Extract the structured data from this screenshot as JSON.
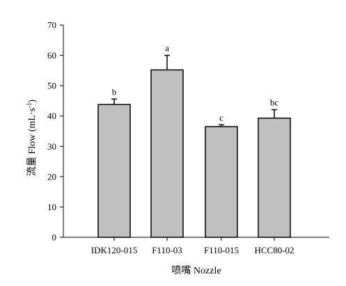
{
  "chart_data": {
    "type": "bar",
    "categories": [
      "IDK120-015",
      "F110-03",
      "F110-015",
      "HCC80-02"
    ],
    "values": [
      43.8,
      55.2,
      36.5,
      39.3
    ],
    "errors": [
      1.8,
      4.8,
      0.6,
      2.8
    ],
    "significance": [
      "b",
      "a",
      "c",
      "bc"
    ],
    "xlabel": "喷嘴 Nozzle",
    "ylabel_main": "流量 Flow (mL·s",
    "ylabel_sup": "-1",
    "ylabel_close": ")",
    "ylim": [
      0,
      70
    ],
    "yticks": [
      "0",
      "10",
      "20",
      "30",
      "40",
      "50",
      "60",
      "70"
    ],
    "bar_color": "#c0c0c0",
    "grid": false
  }
}
